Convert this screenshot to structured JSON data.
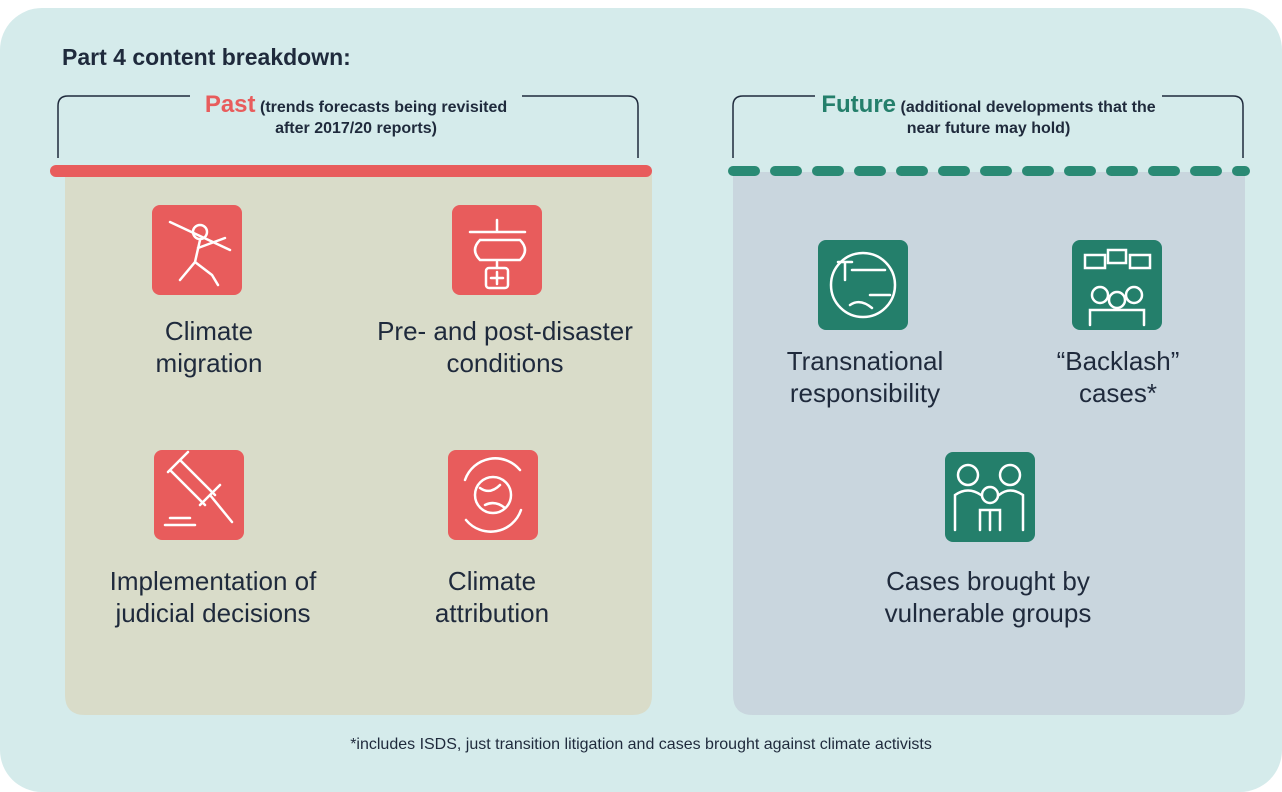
{
  "title": "Part 4 content breakdown:",
  "past": {
    "heading": "Past",
    "subheading": "(trends forecasts being revisited after 2017/20 reports)",
    "items": [
      "Climate migration",
      "Pre- and post-disaster conditions",
      "Implementation of judicial decisions",
      "Climate attribution"
    ]
  },
  "future": {
    "heading": "Future",
    "subheading": "(additional developments that the near future may hold)",
    "items": [
      "Transnational responsibility",
      "“Backlash” cases*",
      "Cases brought by vulnerable groups"
    ]
  },
  "footnote": "*includes ISDS, just transition litigation and cases brought against climate activists"
}
